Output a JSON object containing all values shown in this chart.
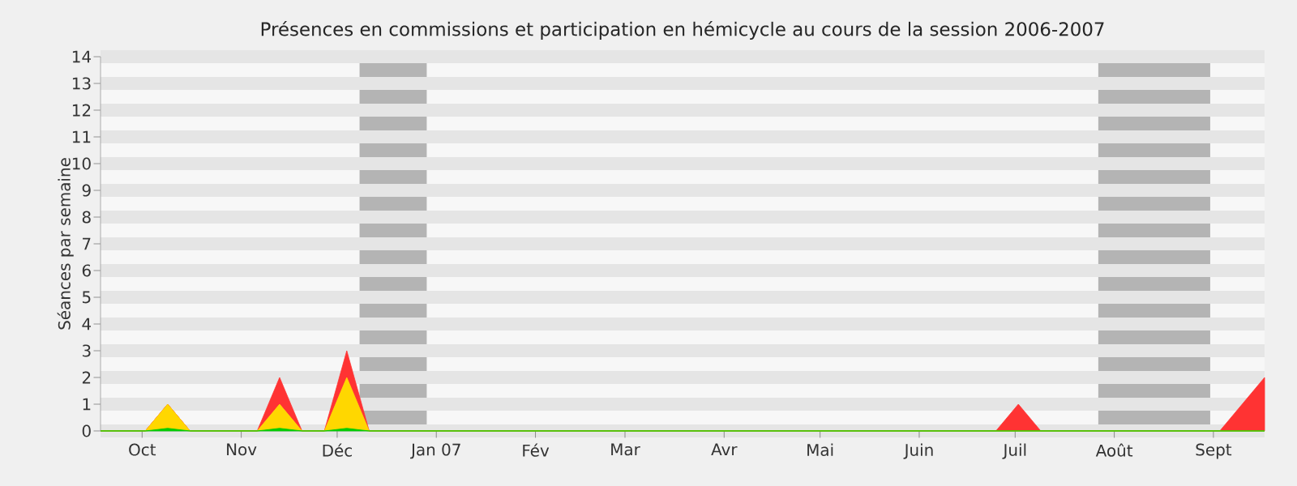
{
  "chart_data": {
    "type": "area",
    "stacked": true,
    "title": "Présences en commissions et participation en hémicycle au cours de la session 2006-2007",
    "ylabel": "Séances par semaine",
    "x": [
      "2006-09-18",
      "2006-09-25",
      "2006-10-02",
      "2006-10-09",
      "2006-10-16",
      "2006-10-23",
      "2006-10-30",
      "2006-11-06",
      "2006-11-13",
      "2006-11-20",
      "2006-11-27",
      "2006-12-04",
      "2006-12-11",
      "2006-12-18",
      "2006-12-25",
      "2007-01-01",
      "2007-01-08",
      "2007-01-15",
      "2007-01-22",
      "2007-01-29",
      "2007-02-05",
      "2007-02-12",
      "2007-02-19",
      "2007-02-26",
      "2007-03-05",
      "2007-03-12",
      "2007-03-19",
      "2007-03-26",
      "2007-04-02",
      "2007-04-09",
      "2007-04-16",
      "2007-04-23",
      "2007-04-30",
      "2007-05-07",
      "2007-05-14",
      "2007-05-21",
      "2007-05-28",
      "2007-06-04",
      "2007-06-11",
      "2007-06-18",
      "2007-06-25",
      "2007-07-02",
      "2007-07-09",
      "2007-07-16",
      "2007-07-23",
      "2007-07-30",
      "2007-08-06",
      "2007-08-13",
      "2007-08-20",
      "2007-08-27",
      "2007-09-03",
      "2007-09-10",
      "2007-09-17"
    ],
    "xlim": [
      "2006-09-18",
      "2007-09-17"
    ],
    "xticks": [
      {
        "value": "2006-10-01",
        "label": "Oct"
      },
      {
        "value": "2006-11-01",
        "label": "Nov"
      },
      {
        "value": "2006-12-01",
        "label": "Déc"
      },
      {
        "value": "2007-01-01",
        "label": "Jan 07"
      },
      {
        "value": "2007-02-01",
        "label": "Fév"
      },
      {
        "value": "2007-03-01",
        "label": "Mar"
      },
      {
        "value": "2007-04-01",
        "label": "Avr"
      },
      {
        "value": "2007-05-01",
        "label": "Mai"
      },
      {
        "value": "2007-06-01",
        "label": "Juin"
      },
      {
        "value": "2007-07-01",
        "label": "Juil"
      },
      {
        "value": "2007-08-01",
        "label": "Août"
      },
      {
        "value": "2007-09-01",
        "label": "Sept"
      }
    ],
    "bands": [
      {
        "axis": "x",
        "from": "2006-12-08",
        "to": "2006-12-29",
        "color": "#b4b4b4"
      },
      {
        "axis": "x",
        "from": "2007-07-27",
        "to": "2007-08-31",
        "color": "#b4b4b4"
      }
    ],
    "series": [
      {
        "color": "#00cc00",
        "values": [
          0,
          0,
          0,
          0.1,
          0,
          0,
          0,
          0,
          0.1,
          0,
          0,
          0.1,
          0,
          0,
          0,
          0,
          0,
          0,
          0,
          0,
          0,
          0,
          0,
          0,
          0,
          0,
          0,
          0,
          0,
          0,
          0,
          0,
          0,
          0,
          0,
          0,
          0,
          0,
          0,
          0,
          0,
          0,
          0,
          0,
          0,
          0,
          0,
          0,
          0,
          0,
          0,
          0,
          0
        ]
      },
      {
        "color": "#ffd700",
        "values": [
          0,
          0,
          0,
          0.9,
          0,
          0,
          0,
          0,
          0.9,
          0,
          0,
          1.9,
          0,
          0,
          0,
          0,
          0,
          0,
          0,
          0,
          0,
          0,
          0,
          0,
          0,
          0,
          0,
          0,
          0,
          0,
          0,
          0,
          0,
          0,
          0,
          0,
          0,
          0,
          0,
          0,
          0,
          0,
          0,
          0,
          0,
          0,
          0,
          0,
          0,
          0,
          0,
          0,
          0
        ]
      },
      {
        "color": "#ff3333",
        "values": [
          0,
          0,
          0,
          0,
          0,
          0,
          0,
          0,
          1,
          0,
          0,
          1,
          0,
          0,
          0,
          0,
          0,
          0,
          0,
          0,
          0,
          0,
          0,
          0,
          0,
          0,
          0,
          0,
          0,
          0,
          0,
          0,
          0,
          0,
          0,
          0,
          0,
          0,
          0,
          0,
          0,
          1,
          0,
          0,
          0,
          0,
          0,
          0,
          0,
          0,
          0,
          1,
          2
        ]
      }
    ],
    "ylim": [
      0,
      14
    ],
    "yticks": [
      0,
      1,
      2,
      3,
      4,
      5,
      6,
      7,
      8,
      9,
      10,
      11,
      12,
      13,
      14
    ],
    "grid": "y"
  }
}
